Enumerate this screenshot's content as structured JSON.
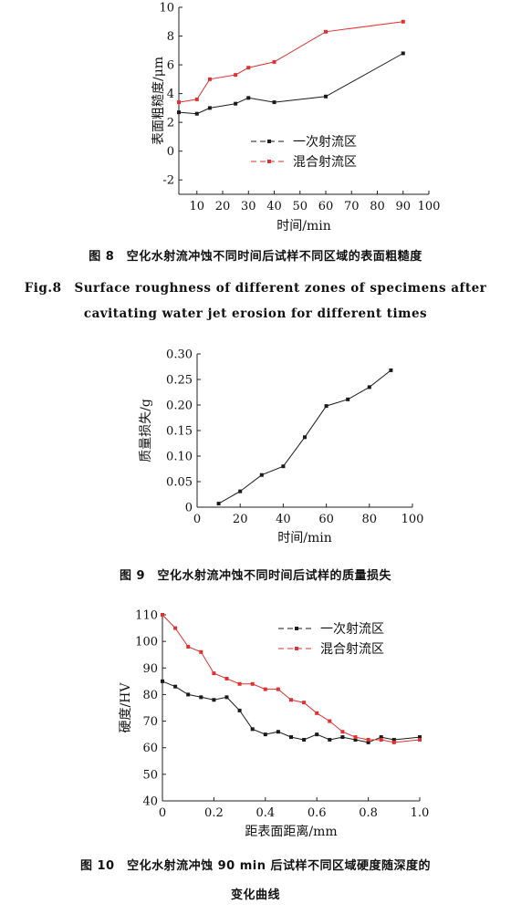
{
  "colors": {
    "axis": "#222222",
    "series_black": "#1a1a1a",
    "series_red": "#e03030"
  },
  "captions": {
    "fig8_cn": "图 8　空化水射流冲蚀不同时间后试样不同区域的表面粗糙度",
    "fig8_en1": "Fig.8　Surface roughness of different zones of specimens after",
    "fig8_en2": "cavitating water jet erosion for different times",
    "fig9_cn": "图 9　空化水射流冲蚀不同时间后试样的质量损失",
    "fig10_cn1": "图 10　空化水射流冲蚀 90 min 后试样不同区域硬度随深度的",
    "fig10_cn2": "变化曲线"
  },
  "chart_data": [
    {
      "type": "line",
      "xlabel": "时间/min",
      "ylabel": "表面粗糙度/μm",
      "xlim": [
        3,
        100
      ],
      "ylim": [
        -3,
        10
      ],
      "xticks": [
        10,
        20,
        30,
        40,
        50,
        60,
        70,
        80,
        90,
        100
      ],
      "yticks": [
        -2,
        0,
        2,
        4,
        6,
        8,
        10
      ],
      "grid": false,
      "legend_position": "center-right",
      "series": [
        {
          "name": "一次射流区",
          "color": "#1a1a1a",
          "x": [
            3,
            10,
            15,
            25,
            30,
            40,
            60,
            90
          ],
          "y": [
            2.7,
            2.6,
            3.0,
            3.3,
            3.7,
            3.4,
            3.8,
            6.8
          ]
        },
        {
          "name": "混合射流区",
          "color": "#e03030",
          "x": [
            3,
            10,
            15,
            25,
            30,
            40,
            60,
            90
          ],
          "y": [
            3.4,
            3.6,
            5.0,
            5.3,
            5.8,
            6.2,
            8.3,
            9.0
          ]
        }
      ]
    },
    {
      "type": "line",
      "xlabel": "时间/min",
      "ylabel": "质量损失/g",
      "xlim": [
        0,
        100
      ],
      "ylim": [
        0,
        0.3
      ],
      "xticks": [
        0,
        20,
        40,
        60,
        80,
        100
      ],
      "yticks": [
        "0",
        "0.05",
        "0.10",
        "0.15",
        "0.20",
        "0.25",
        "0.30"
      ],
      "grid": false,
      "series": [
        {
          "color": "#1a1a1a",
          "x": [
            10,
            20,
            30,
            40,
            50,
            60,
            70,
            80,
            90
          ],
          "y": [
            0.007,
            0.031,
            0.063,
            0.08,
            0.137,
            0.198,
            0.211,
            0.235,
            0.268
          ]
        }
      ]
    },
    {
      "type": "line",
      "xlabel": "距表面距离/mm",
      "ylabel": "硬度/HV",
      "xlim": [
        0,
        1.0
      ],
      "ylim": [
        40,
        110
      ],
      "xticks": [
        "0",
        "0.2",
        "0.4",
        "0.6",
        "0.8",
        "1.0"
      ],
      "yticks": [
        40,
        50,
        60,
        70,
        80,
        90,
        100,
        110
      ],
      "grid": false,
      "legend_position": "top-right",
      "series": [
        {
          "name": "一次射流区",
          "color": "#1a1a1a",
          "x": [
            0,
            0.05,
            0.1,
            0.15,
            0.2,
            0.25,
            0.3,
            0.35,
            0.4,
            0.45,
            0.5,
            0.55,
            0.6,
            0.65,
            0.7,
            0.75,
            0.8,
            0.85,
            0.9,
            1.0
          ],
          "y": [
            85,
            83,
            80,
            79,
            78,
            79,
            74,
            67,
            65,
            66,
            64,
            63,
            65,
            63,
            64,
            63,
            62,
            64,
            63,
            64
          ]
        },
        {
          "name": "混合射流区",
          "color": "#e03030",
          "x": [
            0,
            0.05,
            0.1,
            0.15,
            0.2,
            0.25,
            0.3,
            0.35,
            0.4,
            0.45,
            0.5,
            0.55,
            0.6,
            0.65,
            0.7,
            0.75,
            0.8,
            0.85,
            0.9,
            1.0
          ],
          "y": [
            110,
            105,
            98,
            96,
            88,
            86,
            84,
            84,
            82,
            82,
            78,
            77,
            73,
            70,
            66,
            64,
            63,
            63,
            62,
            63
          ]
        }
      ]
    }
  ]
}
